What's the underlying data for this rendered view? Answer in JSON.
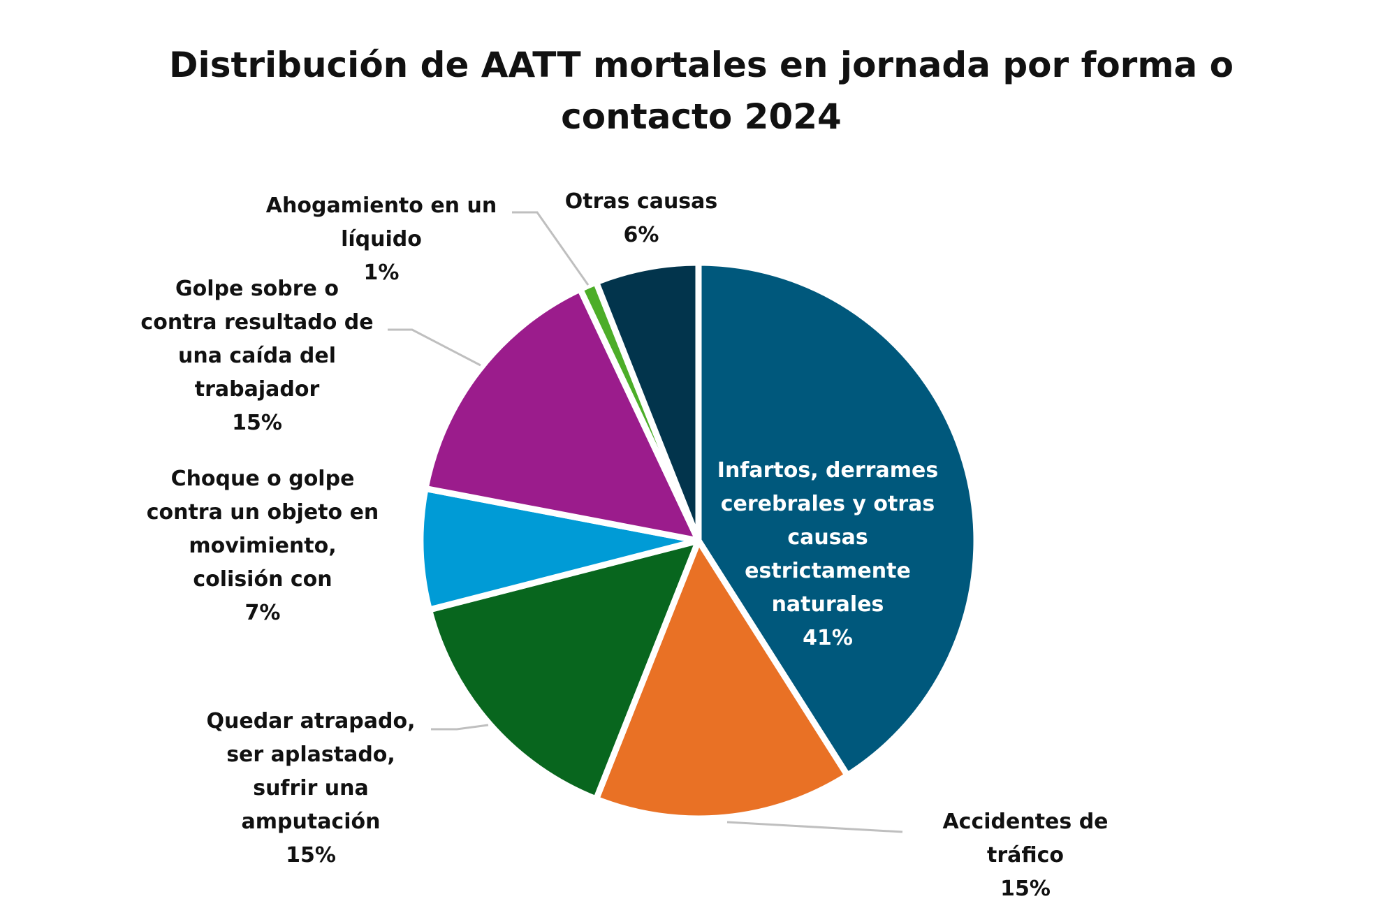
{
  "chart_data": {
    "type": "pie",
    "title": "Distribución de AATT mortales en jornada por forma o contacto 2024",
    "title_lines": [
      "Distribución de AATT mortales en jornada por forma o",
      "contacto 2024"
    ],
    "start": "12 o'clock, clockwise",
    "legend": "none (data labels)",
    "slices": [
      {
        "label": "Infartos, derrames cerebrales y otras causas estrictamente naturales",
        "label_lines": [
          "Infartos, derrames",
          "cerebrales y otras",
          "causas",
          "estrictamente",
          "naturales"
        ],
        "value": 41,
        "pct_text": "41%",
        "color": "#00587C",
        "label_position": "inside"
      },
      {
        "label": "Accidentes de tráfico",
        "label_lines": [
          "Accidentes de",
          "tráfico"
        ],
        "value": 15,
        "pct_text": "15%",
        "color": "#E97125",
        "label_position": "outside"
      },
      {
        "label": "Quedar atrapado, ser aplastado, sufrir una amputación",
        "label_lines": [
          "Quedar atrapado,",
          "ser aplastado,",
          "sufrir una",
          "amputación"
        ],
        "value": 15,
        "pct_text": "15%",
        "color": "#08661E",
        "label_position": "outside"
      },
      {
        "label": "Choque o golpe contra un objeto en movimiento, colisión con",
        "label_lines": [
          "Choque o golpe",
          "contra un objeto en",
          "movimiento,",
          "colisión con"
        ],
        "value": 7,
        "pct_text": "7%",
        "color": "#009BD6",
        "label_position": "outside"
      },
      {
        "label": "Golpe sobre o contra resultado de una caída del trabajador",
        "label_lines": [
          "Golpe sobre o",
          "contra resultado de",
          "una caída del",
          "trabajador"
        ],
        "value": 15,
        "pct_text": "15%",
        "color": "#9B1C8C",
        "label_position": "outside"
      },
      {
        "label": "Ahogamiento en un líquido",
        "label_lines": [
          "Ahogamiento en un",
          "líquido"
        ],
        "value": 1,
        "pct_text": "1%",
        "color": "#4CAD28",
        "label_position": "outside"
      },
      {
        "label": "Otras causas",
        "label_lines": [
          "Otras causas"
        ],
        "value": 6,
        "pct_text": "6%",
        "color": "#02344C",
        "label_position": "outside"
      }
    ]
  }
}
